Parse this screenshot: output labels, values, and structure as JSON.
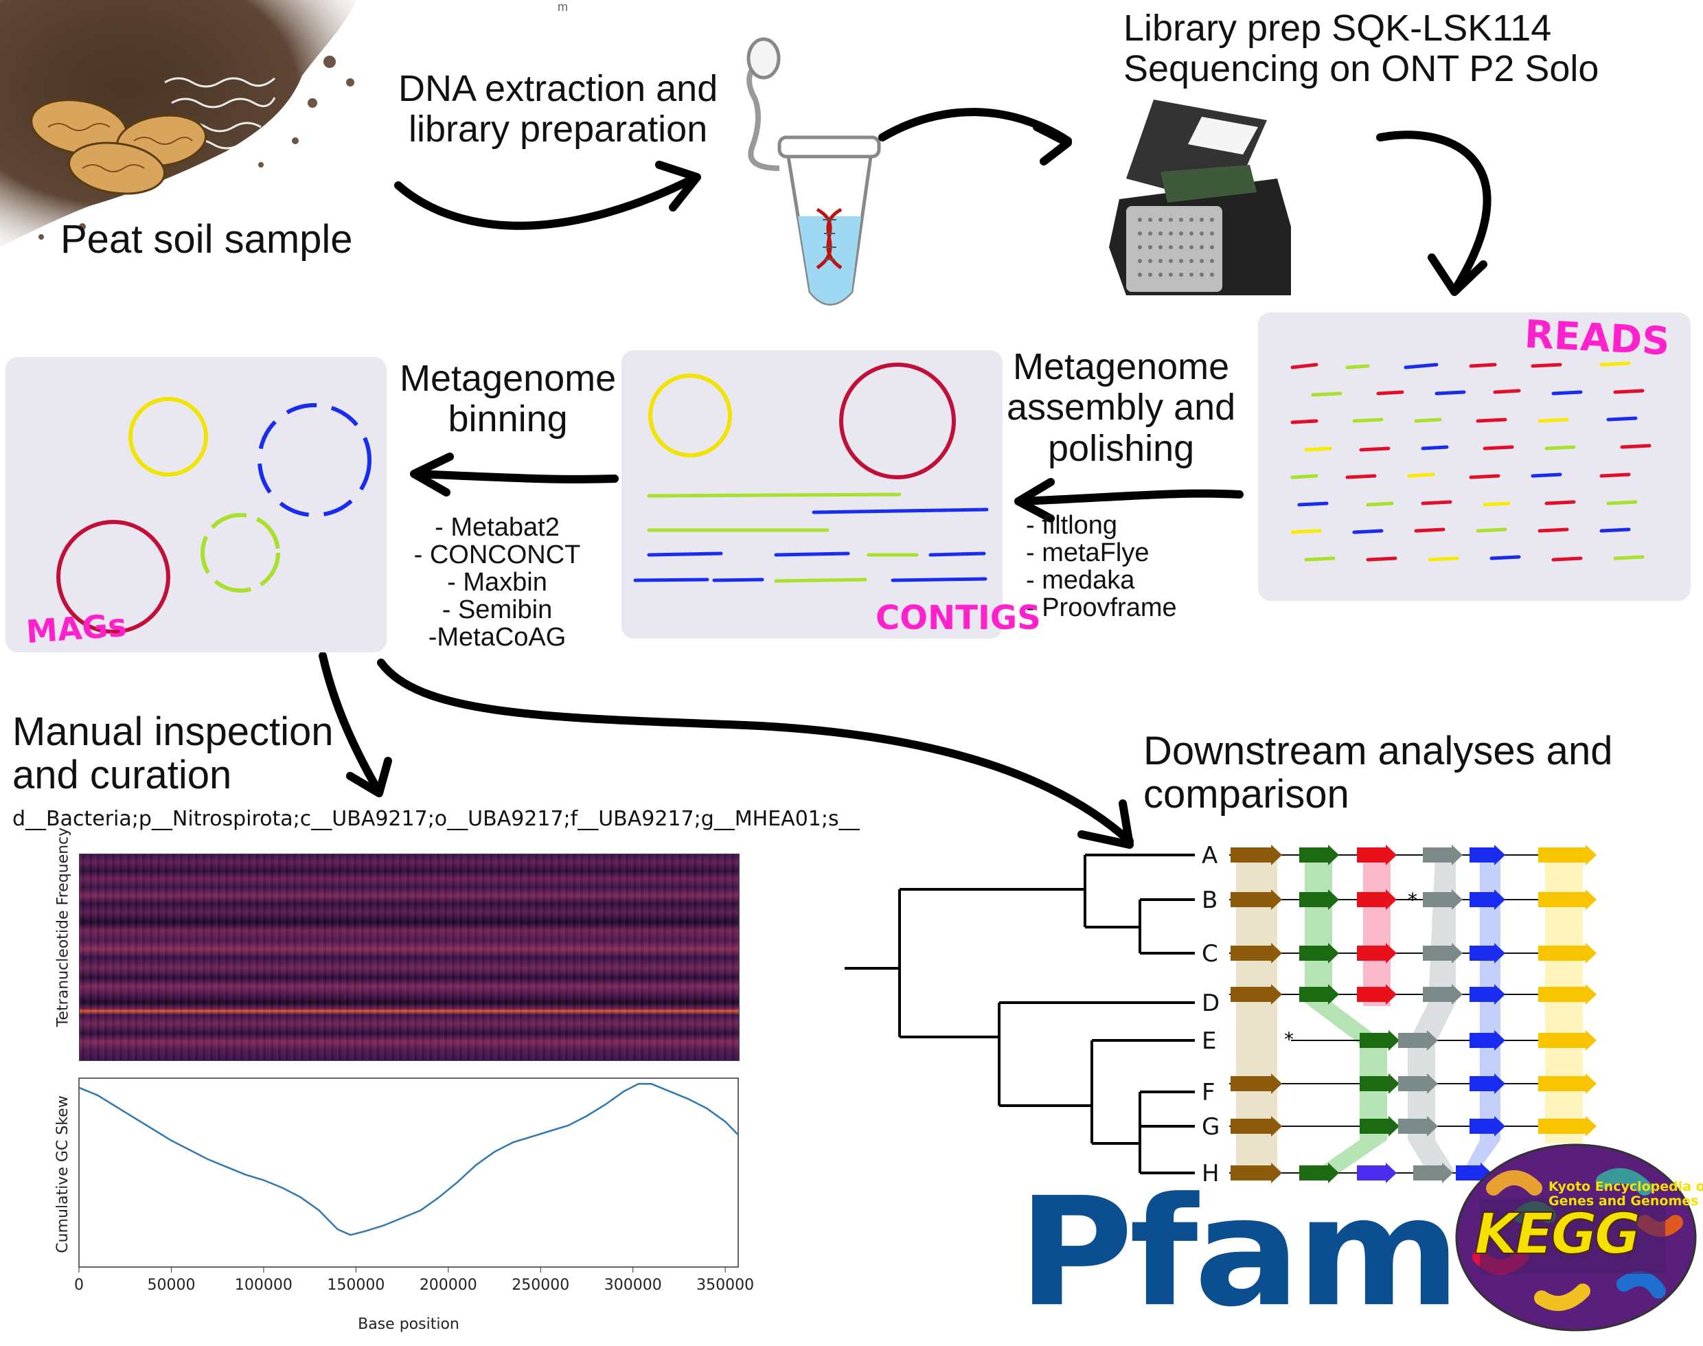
{
  "sample": {
    "label": "Peat soil sample"
  },
  "step_extraction": {
    "label_line1": "DNA extraction and",
    "label_line2": "library preparation"
  },
  "step_sequencing": {
    "label_line1": "Library prep SQK-LSK114",
    "label_line2": "Sequencing on ONT P2 Solo"
  },
  "reads": {
    "tag": "READS"
  },
  "step_assembly": {
    "label_line1": "Metagenome",
    "label_line2": "assembly and",
    "label_line3": "polishing",
    "tools": [
      "- filtlong",
      "- metaFlye",
      "- medaka",
      "- Proovframe"
    ]
  },
  "contigs": {
    "tag": "CONTIGS"
  },
  "step_binning": {
    "label_line1": "Metagenome",
    "label_line2": "binning",
    "tools": [
      "- Metabat2",
      "- CONCONCT",
      "- Maxbin",
      "- Semibin",
      "-MetaCoAG"
    ]
  },
  "mags": {
    "tag": "MAGs"
  },
  "stray_mark": "m",
  "curation": {
    "title_line1": "Manual inspection",
    "title_line2": "and curation",
    "taxonomy": "d__Bacteria;p__Nitrospirota;c__UBA9217;o__UBA9217;f__UBA9217;g__MHEA01;s__"
  },
  "heatmap": {
    "ylabel": "Tetranucleotide Frequency"
  },
  "chart_data": {
    "type": "line",
    "title": "",
    "xlabel": "Base position",
    "ylabel": "Cumulative GC Skew",
    "xlim": [
      0,
      357000
    ],
    "xticks": [
      0,
      50000,
      100000,
      150000,
      200000,
      250000,
      300000,
      350000
    ],
    "x": [
      0,
      10000,
      20000,
      30000,
      40000,
      50000,
      60000,
      70000,
      80000,
      90000,
      100000,
      110000,
      120000,
      130000,
      140000,
      147000,
      155000,
      165000,
      175000,
      185000,
      195000,
      205000,
      215000,
      225000,
      235000,
      245000,
      255000,
      265000,
      275000,
      285000,
      295000,
      303000,
      310000,
      320000,
      330000,
      340000,
      350000,
      357000
    ],
    "y": [
      0.95,
      0.91,
      0.85,
      0.79,
      0.73,
      0.67,
      0.62,
      0.57,
      0.53,
      0.49,
      0.46,
      0.42,
      0.37,
      0.3,
      0.2,
      0.17,
      0.19,
      0.22,
      0.26,
      0.3,
      0.37,
      0.45,
      0.54,
      0.61,
      0.66,
      0.69,
      0.72,
      0.75,
      0.8,
      0.86,
      0.93,
      0.97,
      0.97,
      0.93,
      0.89,
      0.84,
      0.77,
      0.7
    ],
    "series_color": "#2f78b4"
  },
  "downstream": {
    "title_line1": "Downstream analyses and",
    "title_line2": "comparison",
    "leaves": [
      "A",
      "B",
      "C",
      "D",
      "E",
      "F",
      "G",
      "H"
    ]
  },
  "logos": {
    "pfam": "Pfam",
    "kegg_main": "KEGG",
    "kegg_sub_line1": "Kyoto Encyclopedia of",
    "kegg_sub_line2": "Genes and Genomes"
  },
  "colors": {
    "brown": "#8b5a0b",
    "green": "#1c6b12",
    "red": "#e8101b",
    "grey": "#7d8a8a",
    "blue": "#1a2cf0",
    "yellow": "#f8c400",
    "violet": "#4d2cf0",
    "pfam_blue": "#0b4f91",
    "tag_pink": "#ff22cc"
  }
}
